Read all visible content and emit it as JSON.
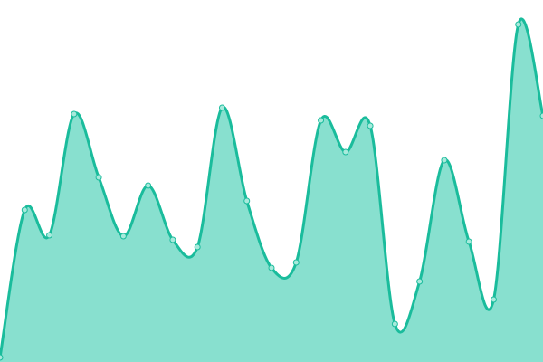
{
  "chart_data": {
    "type": "area",
    "title": "",
    "xlabel": "",
    "ylabel": "",
    "x": [
      0,
      1,
      2,
      3,
      4,
      5,
      6,
      7,
      8,
      9,
      10,
      11,
      12,
      13,
      14,
      15,
      16,
      17,
      18,
      19,
      20,
      21,
      22
    ],
    "values": [
      5,
      168,
      140,
      274,
      204,
      139,
      195,
      135,
      127,
      281,
      178,
      104,
      110,
      267,
      232,
      261,
      42,
      89,
      223,
      133,
      69,
      373,
      272
    ],
    "ylim": [
      0,
      400
    ],
    "xlim": [
      0,
      22
    ],
    "grid": false,
    "axes_visible": false,
    "curve": "smooth",
    "colors": {
      "stroke": "#1abc9c",
      "fill": "#88e0cf",
      "marker_fill": "#a8eadc"
    }
  }
}
